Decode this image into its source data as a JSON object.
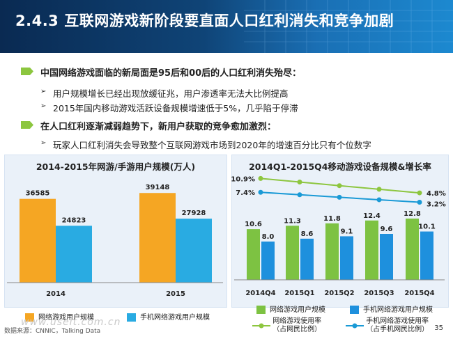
{
  "header": {
    "section_number": "2.4.3",
    "title": "互联网游戏新阶段要直面人口红利消失和竞争加剧"
  },
  "bullets": [
    {
      "level": 1,
      "text": "中国网络游戏面临的新局面是95后和00后的人口红利消失殆尽："
    },
    {
      "level": 2,
      "text": "用户规模增长已经出现放缓征兆，用户渗透率无法大比例提高"
    },
    {
      "level": 2,
      "text": "2015年国内移动游戏活跃设备规模增速低于5%，几乎陷于停滞"
    },
    {
      "level": 1,
      "text": "在人口红利逐渐减弱趋势下，新用户获取的竞争愈加激烈："
    },
    {
      "level": 2,
      "text": "玩家人口红利消失会导致整个互联网游戏市场到2020年的增速百分比只有个位数字"
    }
  ],
  "colors": {
    "orange": "#f5a623",
    "blue": "#1ba1e2",
    "green": "#7dc242",
    "darkblue": "#1e90dd",
    "line_green": "#8dc63f",
    "line_blue": "#1a9ad6"
  },
  "chart_data": [
    {
      "type": "bar",
      "title": "2014-2015年网游/手游用户规模(万人)",
      "categories": [
        "2014",
        "2015"
      ],
      "series": [
        {
          "name": "网络游戏用户规模",
          "values": [
            36585,
            39148
          ]
        },
        {
          "name": "手机网络游戏用户规模",
          "values": [
            24823,
            27928
          ]
        }
      ],
      "ylim": [
        0,
        45000
      ]
    },
    {
      "type": "bar",
      "title": "2014Q1-2015Q4移动游戏设备规模&增长率",
      "categories": [
        "2014Q4",
        "2015Q1",
        "2015Q2",
        "2015Q3",
        "2015Q4"
      ],
      "series": [
        {
          "name": "网络游戏用户规模",
          "values": [
            10.6,
            11.3,
            11.8,
            12.4,
            12.8
          ]
        },
        {
          "name": "手机网络游戏用户规模",
          "values": [
            8.0,
            8.6,
            9.1,
            9.6,
            10.1
          ]
        },
        {
          "name": "网络游戏使用率（占网民比例）",
          "type": "line",
          "values": [
            10.9,
            null,
            null,
            null,
            4.8
          ]
        },
        {
          "name": "手机网络游戏使用率（占手机网民比例）",
          "type": "line",
          "values": [
            7.4,
            null,
            null,
            null,
            3.2
          ]
        }
      ],
      "line_labels": {
        "green_start": "10.9%",
        "green_end": "4.8%",
        "blue_start": "7.4%",
        "blue_end": "3.2%"
      },
      "bar_labels_a": [
        "10.6",
        "11.3",
        "11.8",
        "12.4",
        "12.8"
      ],
      "bar_labels_b": [
        "8.0",
        "8.6",
        "9.1",
        "9.6",
        "10.1"
      ],
      "ylim": [
        0,
        16
      ]
    }
  ],
  "chart1_labels": {
    "v2014a": "36585",
    "v2014b": "24823",
    "v2015a": "39148",
    "v2015b": "27928",
    "x2014": "2014",
    "x2015": "2015"
  },
  "legend": {
    "left_orange": "网络游戏用户规模",
    "left_blue": "手机网络游戏用户规模",
    "right_green_bar": "网络游戏用户规模",
    "right_blue_bar": "手机网络游戏用户规模",
    "right_green_line_1": "网络游戏使用率",
    "right_green_line_2": "（占网民比例）",
    "right_blue_line_1": "手机网络游戏使用率",
    "right_blue_line_2": "（占手机网民比例）"
  },
  "footer": {
    "source": "数据来源：CNNIC，Talking Data",
    "watermark": "www.useit.com.cn",
    "page_number": "35"
  }
}
